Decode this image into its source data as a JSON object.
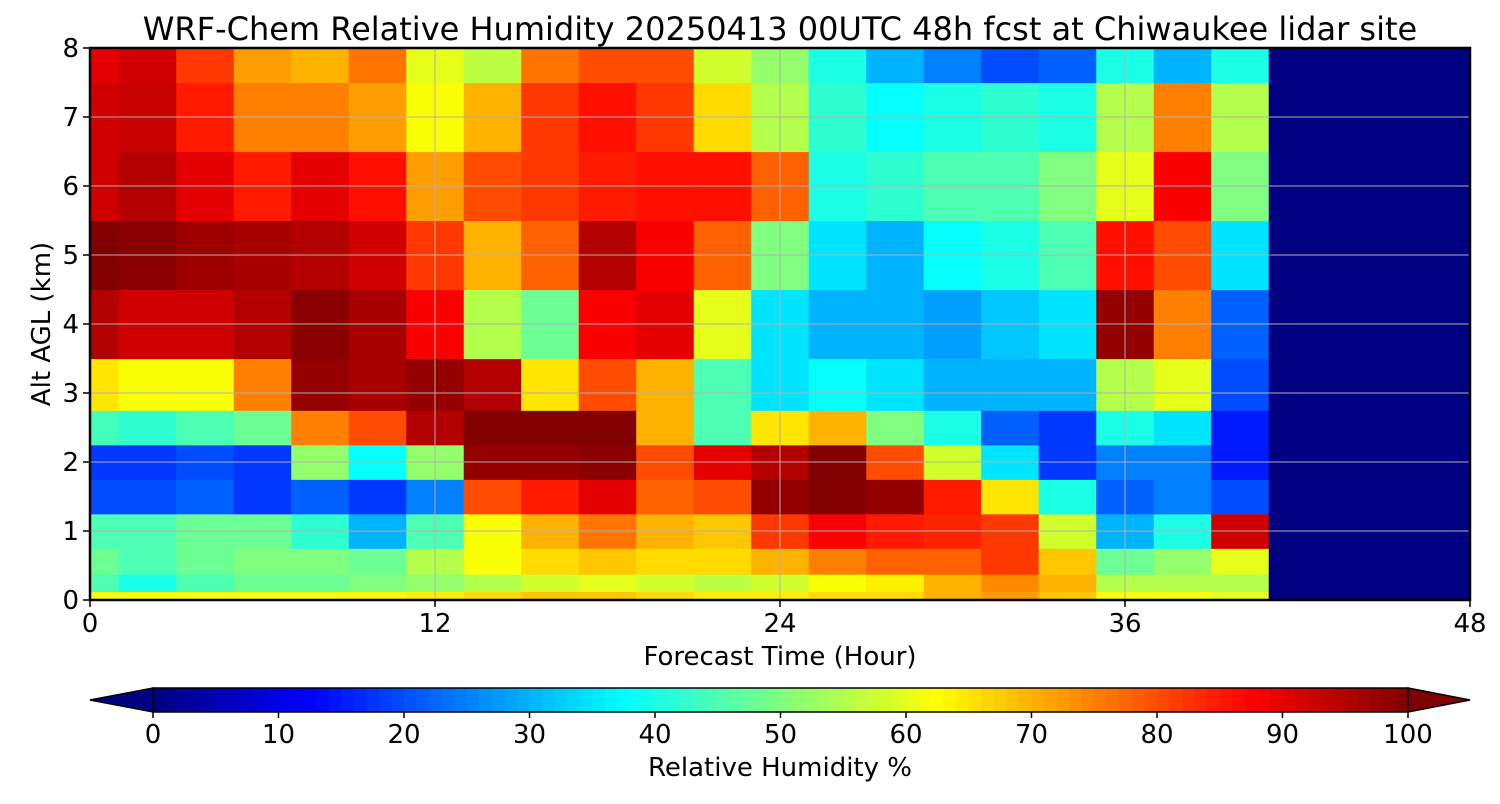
{
  "chart_data": {
    "type": "heatmap",
    "title": "WRF-Chem Relative Humidity 20250413 00UTC 48h fcst at Chiwaukee lidar site",
    "xlabel": "Forecast Time (Hour)",
    "ylabel": "Alt AGL (km)",
    "xlim": [
      0,
      48
    ],
    "ylim": [
      0,
      8
    ],
    "x_ticks": [
      "0",
      "12",
      "24",
      "36",
      "48"
    ],
    "y_ticks": [
      "0",
      "1",
      "2",
      "3",
      "4",
      "5",
      "6",
      "7",
      "8"
    ],
    "grid": true,
    "colorbar": {
      "label": "Relative Humidity %",
      "min": 0,
      "max": 100,
      "ticks": [
        "0",
        "10",
        "20",
        "30",
        "40",
        "50",
        "60",
        "70",
        "80",
        "90",
        "100"
      ],
      "colormap": "jet",
      "extend": "both"
    },
    "times": [
      0,
      2,
      4,
      6,
      8,
      10,
      12,
      14,
      16,
      18,
      20,
      22,
      24,
      26,
      28,
      30,
      32,
      34,
      36,
      38,
      40,
      42,
      44,
      46,
      48
    ],
    "altitudes": [
      0.0,
      0.25,
      0.5,
      1.0,
      1.5,
      2.0,
      2.5,
      3.0,
      4.0,
      5.0,
      6.0,
      7.0,
      8.0
    ],
    "rh_by_time": [
      [
        62,
        45,
        48,
        45,
        20,
        18,
        44,
        65,
        95,
        100,
        92,
        92,
        90
      ],
      [
        62,
        40,
        45,
        45,
        20,
        18,
        42,
        62,
        92,
        99,
        95,
        93,
        92
      ],
      [
        62,
        45,
        48,
        48,
        22,
        20,
        45,
        62,
        92,
        97,
        90,
        85,
        82
      ],
      [
        62,
        48,
        50,
        48,
        18,
        18,
        48,
        75,
        95,
        96,
        85,
        75,
        72
      ],
      [
        62,
        48,
        50,
        42,
        22,
        52,
        75,
        98,
        99,
        95,
        90,
        75,
        70
      ],
      [
        63,
        50,
        48,
        30,
        18,
        38,
        80,
        96,
        96,
        92,
        86,
        72,
        76
      ],
      [
        64,
        52,
        55,
        45,
        25,
        52,
        95,
        98,
        88,
        82,
        72,
        62,
        60
      ],
      [
        66,
        55,
        62,
        62,
        80,
        98,
        100,
        95,
        55,
        70,
        80,
        70,
        56
      ],
      [
        68,
        58,
        66,
        70,
        85,
        98,
        100,
        65,
        48,
        78,
        82,
        82,
        76
      ],
      [
        68,
        60,
        68,
        76,
        90,
        99,
        100,
        80,
        88,
        95,
        85,
        86,
        80
      ],
      [
        66,
        58,
        66,
        70,
        78,
        80,
        70,
        70,
        90,
        88,
        86,
        82,
        80
      ],
      [
        64,
        56,
        66,
        68,
        80,
        90,
        45,
        45,
        60,
        78,
        86,
        66,
        58
      ],
      [
        64,
        58,
        70,
        82,
        98,
        95,
        65,
        35,
        35,
        50,
        78,
        55,
        52
      ],
      [
        66,
        62,
        75,
        88,
        100,
        100,
        70,
        38,
        30,
        35,
        40,
        42,
        40
      ],
      [
        66,
        64,
        78,
        85,
        98,
        80,
        50,
        35,
        30,
        30,
        42,
        38,
        30
      ],
      [
        70,
        70,
        78,
        84,
        85,
        58,
        40,
        30,
        28,
        38,
        45,
        40,
        25
      ],
      [
        72,
        74,
        82,
        82,
        65,
        35,
        22,
        30,
        32,
        40,
        45,
        42,
        20
      ],
      [
        68,
        70,
        68,
        58,
        40,
        18,
        18,
        30,
        35,
        45,
        50,
        40,
        22
      ],
      [
        62,
        55,
        48,
        30,
        22,
        25,
        40,
        55,
        98,
        86,
        60,
        55,
        40
      ],
      [
        62,
        55,
        52,
        40,
        25,
        25,
        35,
        60,
        75,
        80,
        88,
        75,
        30
      ],
      [
        60,
        55,
        60,
        92,
        20,
        15,
        15,
        20,
        22,
        35,
        50,
        55,
        40
      ],
      [
        0,
        0,
        0,
        0,
        0,
        0,
        0,
        0,
        0,
        0,
        0,
        0,
        0
      ],
      [
        0,
        0,
        0,
        0,
        0,
        0,
        0,
        0,
        0,
        0,
        0,
        0,
        0
      ],
      [
        0,
        0,
        0,
        0,
        0,
        0,
        0,
        0,
        0,
        0,
        0,
        0,
        0
      ],
      [
        0,
        0,
        0,
        0,
        0,
        0,
        0,
        0,
        0,
        0,
        0,
        0,
        0
      ]
    ]
  }
}
